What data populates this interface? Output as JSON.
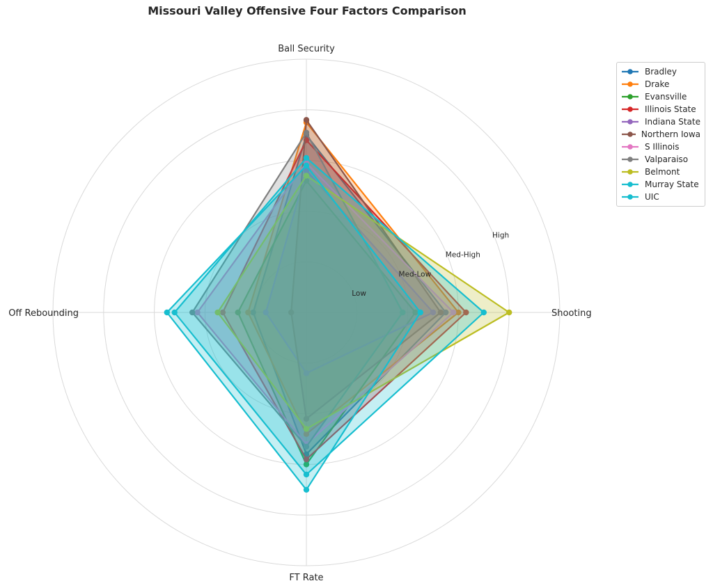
{
  "chart_data": {
    "type": "radar",
    "title": "Missouri Valley Offensive Four Factors Comparison",
    "axes": [
      "Shooting",
      "Ball Security",
      "Off Rebounding",
      "FT Rate"
    ],
    "ring_labels": [
      "Low",
      "Med-Low",
      "Med-High",
      "High"
    ],
    "range": [
      0,
      1
    ],
    "grid": true,
    "legend_position": "upper-right-outside",
    "series": [
      {
        "name": "Bradley",
        "color": "#1f77b4",
        "values": [
          0.55,
          0.7,
          0.21,
          0.56
        ]
      },
      {
        "name": "Drake",
        "color": "#ff7f0e",
        "values": [
          0.6,
          0.75,
          0.23,
          0.48
        ]
      },
      {
        "name": "Evansville",
        "color": "#2ca02c",
        "values": [
          0.43,
          0.52,
          0.27,
          0.6
        ]
      },
      {
        "name": "Illinois State",
        "color": "#d62728",
        "values": [
          0.63,
          0.68,
          0.33,
          0.58
        ]
      },
      {
        "name": "Indiana State",
        "color": "#9467bd",
        "values": [
          0.5,
          0.56,
          0.16,
          0.24
        ]
      },
      {
        "name": "Northern Iowa",
        "color": "#8c564b",
        "values": [
          0.53,
          0.76,
          0.06,
          0.42
        ]
      },
      {
        "name": "S Illinois",
        "color": "#e377c2",
        "values": [
          0.58,
          0.59,
          0.43,
          0.52
        ]
      },
      {
        "name": "Valparaiso",
        "color": "#7f7f7f",
        "values": [
          0.38,
          0.71,
          0.45,
          0.53
        ]
      },
      {
        "name": "Belmont",
        "color": "#bcbd22",
        "values": [
          0.8,
          0.54,
          0.35,
          0.46
        ]
      },
      {
        "name": "Murray State",
        "color": "#17becf",
        "values": [
          0.7,
          0.61,
          0.52,
          0.64
        ]
      },
      {
        "name": "UIC",
        "color": "#17becf",
        "values": [
          0.45,
          0.58,
          0.55,
          0.7
        ]
      }
    ]
  }
}
